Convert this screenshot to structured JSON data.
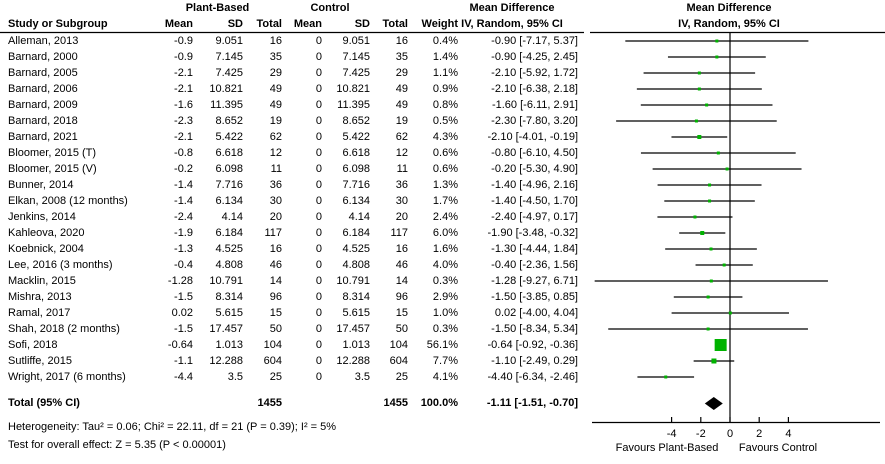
{
  "meta": {
    "background_color": "#ffffff",
    "marker_color": "#00B300",
    "diamond_color": "#000000",
    "line_color": "#000000"
  },
  "header": {
    "group1": "Plant-Based",
    "group2": "Control",
    "study_col": "Study or Subgroup",
    "mean": "Mean",
    "sd": "SD",
    "total": "Total",
    "weight": "Weight",
    "md_title": "Mean Difference",
    "md_sub": "IV, Random, 95% CI"
  },
  "chart_data": {
    "type": "forest",
    "effect_measure": "Mean Difference",
    "model": "IV, Random, 95% CI",
    "x_ticks": [
      -4,
      -2,
      0,
      2,
      4
    ],
    "x_axis_left_label": "Favours Plant-Based",
    "x_axis_right_label": "Favours Control",
    "studies": [
      {
        "name": "Alleman, 2013",
        "mean1": "-0.9",
        "sd1": "9.051",
        "total1": "16",
        "mean2": "0",
        "sd2": "9.051",
        "total2": "16",
        "weight": "0.4%",
        "ci": "-0.90 [-7.17, 5.37]",
        "md": -0.9,
        "lo": -7.17,
        "hi": 5.37,
        "w": 0.4
      },
      {
        "name": "Barnard, 2000",
        "mean1": "-0.9",
        "sd1": "7.145",
        "total1": "35",
        "mean2": "0",
        "sd2": "7.145",
        "total2": "35",
        "weight": "1.4%",
        "ci": "-0.90 [-4.25, 2.45]",
        "md": -0.9,
        "lo": -4.25,
        "hi": 2.45,
        "w": 1.4
      },
      {
        "name": "Barnard, 2005",
        "mean1": "-2.1",
        "sd1": "7.425",
        "total1": "29",
        "mean2": "0",
        "sd2": "7.425",
        "total2": "29",
        "weight": "1.1%",
        "ci": "-2.10 [-5.92, 1.72]",
        "md": -2.1,
        "lo": -5.92,
        "hi": 1.72,
        "w": 1.1
      },
      {
        "name": "Barnard, 2006",
        "mean1": "-2.1",
        "sd1": "10.821",
        "total1": "49",
        "mean2": "0",
        "sd2": "10.821",
        "total2": "49",
        "weight": "0.9%",
        "ci": "-2.10 [-6.38, 2.18]",
        "md": -2.1,
        "lo": -6.38,
        "hi": 2.18,
        "w": 0.9
      },
      {
        "name": "Barnard, 2009",
        "mean1": "-1.6",
        "sd1": "11.395",
        "total1": "49",
        "mean2": "0",
        "sd2": "11.395",
        "total2": "49",
        "weight": "0.8%",
        "ci": "-1.60 [-6.11, 2.91]",
        "md": -1.6,
        "lo": -6.11,
        "hi": 2.91,
        "w": 0.8
      },
      {
        "name": "Barnard, 2018",
        "mean1": "-2.3",
        "sd1": "8.652",
        "total1": "19",
        "mean2": "0",
        "sd2": "8.652",
        "total2": "19",
        "weight": "0.5%",
        "ci": "-2.30 [-7.80, 3.20]",
        "md": -2.3,
        "lo": -7.8,
        "hi": 3.2,
        "w": 0.5
      },
      {
        "name": "Barnard, 2021",
        "mean1": "-2.1",
        "sd1": "5.422",
        "total1": "62",
        "mean2": "0",
        "sd2": "5.422",
        "total2": "62",
        "weight": "4.3%",
        "ci": "-2.10 [-4.01, -0.19]",
        "md": -2.1,
        "lo": -4.01,
        "hi": -0.19,
        "w": 4.3
      },
      {
        "name": "Bloomer, 2015 (T)",
        "mean1": "-0.8",
        "sd1": "6.618",
        "total1": "12",
        "mean2": "0",
        "sd2": "6.618",
        "total2": "12",
        "weight": "0.6%",
        "ci": "-0.80 [-6.10, 4.50]",
        "md": -0.8,
        "lo": -6.1,
        "hi": 4.5,
        "w": 0.6
      },
      {
        "name": "Bloomer, 2015 (V)",
        "mean1": "-0.2",
        "sd1": "6.098",
        "total1": "11",
        "mean2": "0",
        "sd2": "6.098",
        "total2": "11",
        "weight": "0.6%",
        "ci": "-0.20 [-5.30, 4.90]",
        "md": -0.2,
        "lo": -5.3,
        "hi": 4.9,
        "w": 0.6
      },
      {
        "name": "Bunner, 2014",
        "mean1": "-1.4",
        "sd1": "7.716",
        "total1": "36",
        "mean2": "0",
        "sd2": "7.716",
        "total2": "36",
        "weight": "1.3%",
        "ci": "-1.40 [-4.96, 2.16]",
        "md": -1.4,
        "lo": -4.96,
        "hi": 2.16,
        "w": 1.3
      },
      {
        "name": "Elkan, 2008 (12 months)",
        "mean1": "-1.4",
        "sd1": "6.134",
        "total1": "30",
        "mean2": "0",
        "sd2": "6.134",
        "total2": "30",
        "weight": "1.7%",
        "ci": "-1.40 [-4.50, 1.70]",
        "md": -1.4,
        "lo": -4.5,
        "hi": 1.7,
        "w": 1.7
      },
      {
        "name": "Jenkins, 2014",
        "mean1": "-2.4",
        "sd1": "4.14",
        "total1": "20",
        "mean2": "0",
        "sd2": "4.14",
        "total2": "20",
        "weight": "2.4%",
        "ci": "-2.40 [-4.97, 0.17]",
        "md": -2.4,
        "lo": -4.97,
        "hi": 0.17,
        "w": 2.4
      },
      {
        "name": "Kahleova, 2020",
        "mean1": "-1.9",
        "sd1": "6.184",
        "total1": "117",
        "mean2": "0",
        "sd2": "6.184",
        "total2": "117",
        "weight": "6.0%",
        "ci": "-1.90 [-3.48, -0.32]",
        "md": -1.9,
        "lo": -3.48,
        "hi": -0.32,
        "w": 6.0
      },
      {
        "name": "Koebnick, 2004",
        "mean1": "-1.3",
        "sd1": "4.525",
        "total1": "16",
        "mean2": "0",
        "sd2": "4.525",
        "total2": "16",
        "weight": "1.6%",
        "ci": "-1.30 [-4.44, 1.84]",
        "md": -1.3,
        "lo": -4.44,
        "hi": 1.84,
        "w": 1.6
      },
      {
        "name": "Lee, 2016 (3 months)",
        "mean1": "-0.4",
        "sd1": "4.808",
        "total1": "46",
        "mean2": "0",
        "sd2": "4.808",
        "total2": "46",
        "weight": "4.0%",
        "ci": "-0.40 [-2.36, 1.56]",
        "md": -0.4,
        "lo": -2.36,
        "hi": 1.56,
        "w": 4.0
      },
      {
        "name": "Macklin, 2015",
        "mean1": "-1.28",
        "sd1": "10.791",
        "total1": "14",
        "mean2": "0",
        "sd2": "10.791",
        "total2": "14",
        "weight": "0.3%",
        "ci": "-1.28 [-9.27, 6.71]",
        "md": -1.28,
        "lo": -9.27,
        "hi": 6.71,
        "w": 0.3
      },
      {
        "name": "Mishra, 2013",
        "mean1": "-1.5",
        "sd1": "8.314",
        "total1": "96",
        "mean2": "0",
        "sd2": "8.314",
        "total2": "96",
        "weight": "2.9%",
        "ci": "-1.50 [-3.85, 0.85]",
        "md": -1.5,
        "lo": -3.85,
        "hi": 0.85,
        "w": 2.9
      },
      {
        "name": "Ramal, 2017",
        "mean1": "0.02",
        "sd1": "5.615",
        "total1": "15",
        "mean2": "0",
        "sd2": "5.615",
        "total2": "15",
        "weight": "1.0%",
        "ci": "0.02 [-4.00, 4.04]",
        "md": 0.02,
        "lo": -4.0,
        "hi": 4.04,
        "w": 1.0
      },
      {
        "name": "Shah, 2018 (2 months)",
        "mean1": "-1.5",
        "sd1": "17.457",
        "total1": "50",
        "mean2": "0",
        "sd2": "17.457",
        "total2": "50",
        "weight": "0.3%",
        "ci": "-1.50 [-8.34, 5.34]",
        "md": -1.5,
        "lo": -8.34,
        "hi": 5.34,
        "w": 0.3
      },
      {
        "name": "Sofi, 2018",
        "mean1": "-0.64",
        "sd1": "1.013",
        "total1": "104",
        "mean2": "0",
        "sd2": "1.013",
        "total2": "104",
        "weight": "56.1%",
        "ci": "-0.64 [-0.92, -0.36]",
        "md": -0.64,
        "lo": -0.92,
        "hi": -0.36,
        "w": 56.1
      },
      {
        "name": "Sutliffe, 2015",
        "mean1": "-1.1",
        "sd1": "12.288",
        "total1": "604",
        "mean2": "0",
        "sd2": "12.288",
        "total2": "604",
        "weight": "7.7%",
        "ci": "-1.10 [-2.49, 0.29]",
        "md": -1.1,
        "lo": -2.49,
        "hi": 0.29,
        "w": 7.7
      },
      {
        "name": "Wright, 2017 (6 months)",
        "mean1": "-4.4",
        "sd1": "3.5",
        "total1": "25",
        "mean2": "0",
        "sd2": "3.5",
        "total2": "25",
        "weight": "4.1%",
        "ci": "-4.40 [-6.34, -2.46]",
        "md": -4.4,
        "lo": -6.34,
        "hi": -2.46,
        "w": 4.1
      }
    ],
    "total": {
      "label": "Total (95% CI)",
      "total1": "1455",
      "total2": "1455",
      "weight": "100.0%",
      "ci": "-1.11 [-1.51, -0.70]",
      "md": -1.11,
      "lo": -1.51,
      "hi": -0.7
    },
    "heterogeneity": "Heterogeneity: Tau² = 0.06; Chi² = 22.11, df = 21 (P = 0.39); I² = 5%",
    "overall_effect": "Test for overall effect: Z = 5.35 (P < 0.00001)"
  }
}
